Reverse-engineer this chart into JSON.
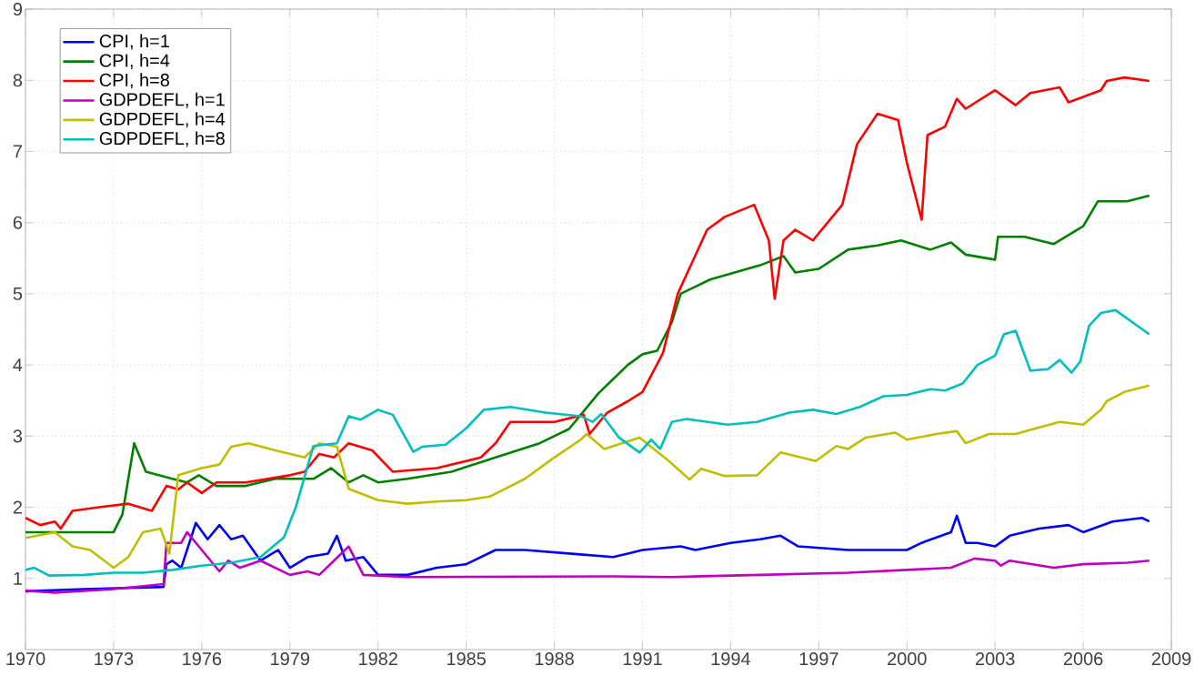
{
  "chart_data": {
    "type": "line",
    "xlim": [
      1970,
      2009
    ],
    "ylim": [
      0,
      9
    ],
    "xticks": [
      1970,
      1973,
      1976,
      1979,
      1982,
      1985,
      1988,
      1991,
      1994,
      1997,
      2000,
      2003,
      2006,
      2009
    ],
    "yticks": [
      1,
      2,
      3,
      4,
      5,
      6,
      7,
      8,
      9
    ],
    "grid": true,
    "legend": "top left",
    "line_style": "solid",
    "marker": "none",
    "series": [
      {
        "name": "CPI, h=1",
        "color": "#0000ff",
        "x": [
          1970,
          1972,
          1974.7,
          1974.8,
          1975,
          1975.3,
          1975.8,
          1976.2,
          1976.6,
          1977,
          1977.4,
          1978,
          1978.6,
          1979,
          1979.6,
          1980.3,
          1980.6,
          1980.9,
          1981.5,
          1982,
          1983,
          1984,
          1985,
          1986,
          1987,
          1988.5,
          1990,
          1990.5,
          1991,
          1992.3,
          1992.8,
          1994,
          1995,
          1995.7,
          1996.3,
          1998,
          2000,
          2000.5,
          2001.5,
          2001.7,
          2002,
          2002.4,
          2003,
          2003.5,
          2004.5,
          2005.5,
          2006,
          2007,
          2008,
          2008.25
        ],
        "values": [
          0.82,
          0.85,
          0.88,
          1.2,
          1.25,
          1.15,
          1.78,
          1.55,
          1.75,
          1.55,
          1.6,
          1.25,
          1.4,
          1.15,
          1.3,
          1.35,
          1.6,
          1.25,
          1.3,
          1.05,
          1.05,
          1.15,
          1.2,
          1.4,
          1.4,
          1.35,
          1.3,
          1.35,
          1.4,
          1.45,
          1.4,
          1.5,
          1.55,
          1.6,
          1.45,
          1.4,
          1.4,
          1.5,
          1.65,
          1.88,
          1.5,
          1.5,
          1.45,
          1.6,
          1.7,
          1.75,
          1.65,
          1.8,
          1.85,
          1.8
        ]
      },
      {
        "name": "CPI, h=4",
        "color": "#008000",
        "x": [
          1970,
          1973,
          1973.3,
          1973.7,
          1974.1,
          1975,
          1975.5,
          1975.9,
          1976.5,
          1977.5,
          1978.5,
          1979.8,
          1980.4,
          1981,
          1981.5,
          1982,
          1983,
          1984.5,
          1986,
          1987.5,
          1988.5,
          1989.5,
          1990,
          1990.5,
          1991,
          1991.5,
          1992,
          1992.3,
          1993.3,
          1995,
          1995.8,
          1996.2,
          1997,
          1998,
          1999,
          1999.8,
          2000.8,
          2001.5,
          2002,
          2003,
          2003.1,
          2004,
          2005,
          2006,
          2006.5,
          2007.5,
          2008.25
        ],
        "values": [
          1.65,
          1.65,
          1.9,
          2.9,
          2.5,
          2.4,
          2.35,
          2.45,
          2.3,
          2.3,
          2.4,
          2.4,
          2.55,
          2.35,
          2.45,
          2.35,
          2.4,
          2.5,
          2.7,
          2.9,
          3.1,
          3.6,
          3.8,
          4.0,
          4.15,
          4.2,
          4.6,
          5.0,
          5.2,
          5.4,
          5.53,
          5.3,
          5.35,
          5.62,
          5.68,
          5.75,
          5.62,
          5.72,
          5.55,
          5.48,
          5.8,
          5.8,
          5.7,
          5.95,
          6.3,
          6.3,
          6.38
        ]
      },
      {
        "name": "CPI, h=8",
        "color": "#ff0000",
        "x": [
          1970,
          1970.5,
          1971,
          1971.2,
          1971.6,
          1972.5,
          1973.5,
          1974.3,
          1974.8,
          1975.2,
          1975.5,
          1976,
          1976.5,
          1977.5,
          1979,
          1979.5,
          1980,
          1980.5,
          1981,
          1981.8,
          1982.5,
          1984,
          1985.5,
          1986,
          1986.5,
          1988,
          1989,
          1989.2,
          1989.8,
          1990.5,
          1991,
          1991.7,
          1992.2,
          1993.2,
          1993.8,
          1994.8,
          1995.3,
          1995.5,
          1995.8,
          1996.2,
          1996.8,
          1997.8,
          1998.3,
          1999,
          1999.7,
          2000,
          2000.5,
          2000.7,
          2001.3,
          2001.7,
          2002,
          2003,
          2003.7,
          2004.2,
          2005.2,
          2005.5,
          2006.6,
          2006.8,
          2007.4,
          2008.25
        ],
        "values": [
          1.85,
          1.75,
          1.8,
          1.7,
          1.95,
          2.0,
          2.05,
          1.95,
          2.3,
          2.25,
          2.35,
          2.2,
          2.35,
          2.35,
          2.45,
          2.5,
          2.75,
          2.7,
          2.9,
          2.8,
          2.5,
          2.55,
          2.7,
          2.9,
          3.2,
          3.2,
          3.3,
          3.03,
          3.33,
          3.49,
          3.62,
          4.17,
          5.0,
          5.9,
          6.08,
          6.25,
          5.75,
          4.93,
          5.75,
          5.9,
          5.75,
          6.25,
          7.1,
          7.53,
          7.44,
          6.84,
          6.04,
          7.23,
          7.35,
          7.74,
          7.6,
          7.86,
          7.65,
          7.82,
          7.9,
          7.69,
          7.86,
          7.99,
          8.04,
          7.99
        ]
      },
      {
        "name": "GDPDEFL, h=1",
        "color": "#bf00bf",
        "x": [
          1970,
          1971,
          1973,
          1974.7,
          1974.8,
          1975.3,
          1975.5,
          1976,
          1976.6,
          1976.9,
          1977.3,
          1978,
          1978.5,
          1979,
          1979.6,
          1980,
          1980.5,
          1981,
          1981.5,
          1983,
          1990,
          1992,
          1995,
          1998,
          2000,
          2001.5,
          2002.3,
          2003,
          2003.2,
          2003.5,
          2005,
          2006,
          2007.5,
          2008.25
        ],
        "values": [
          0.83,
          0.8,
          0.85,
          0.92,
          1.5,
          1.5,
          1.65,
          1.4,
          1.1,
          1.25,
          1.15,
          1.25,
          1.15,
          1.05,
          1.1,
          1.05,
          1.25,
          1.45,
          1.05,
          1.02,
          1.03,
          1.02,
          1.05,
          1.08,
          1.12,
          1.15,
          1.28,
          1.25,
          1.18,
          1.25,
          1.15,
          1.2,
          1.22,
          1.25
        ]
      },
      {
        "name": "GDPDEFL, h=4",
        "color": "#bfbf00",
        "x": [
          1970,
          1971,
          1971.6,
          1972.2,
          1973,
          1973.5,
          1974,
          1974.6,
          1974.9,
          1975.2,
          1976,
          1976.6,
          1977,
          1977.6,
          1978.5,
          1979.5,
          1980,
          1980.6,
          1981,
          1982,
          1983,
          1984,
          1985,
          1985.8,
          1987,
          1988,
          1988.9,
          1989.1,
          1989.7,
          1990.9,
          1991.9,
          1992.6,
          1993,
          1993.8,
          1994.9,
          1995.7,
          1996.9,
          1997.6,
          1998,
          1998.6,
          1999.6,
          2000,
          2001,
          2001.7,
          2002,
          2002.8,
          2003.7,
          2004.4,
          2005.2,
          2006,
          2006.6,
          2006.8,
          2007.4,
          2008.25
        ],
        "values": [
          1.57,
          1.65,
          1.45,
          1.4,
          1.15,
          1.3,
          1.65,
          1.7,
          1.35,
          2.45,
          2.55,
          2.6,
          2.85,
          2.9,
          2.8,
          2.7,
          2.9,
          2.85,
          2.26,
          2.1,
          2.05,
          2.08,
          2.1,
          2.15,
          2.4,
          2.7,
          2.95,
          3.03,
          2.82,
          2.98,
          2.65,
          2.39,
          2.54,
          2.44,
          2.45,
          2.77,
          2.65,
          2.86,
          2.82,
          2.98,
          3.05,
          2.95,
          3.03,
          3.07,
          2.9,
          3.03,
          3.03,
          3.11,
          3.2,
          3.16,
          3.37,
          3.49,
          3.62,
          3.71
        ]
      },
      {
        "name": "GDPDEFL, h=8",
        "color": "#00bfbf",
        "x": [
          1970,
          1970.3,
          1970.8,
          1972,
          1973,
          1974,
          1975,
          1976,
          1977,
          1978,
          1978.8,
          1979.2,
          1979.8,
          1980.6,
          1981,
          1981.4,
          1982,
          1982.5,
          1983.2,
          1983.5,
          1984.3,
          1985,
          1985.6,
          1986.5,
          1987.7,
          1988.9,
          1989.3,
          1989.6,
          1990.2,
          1990.9,
          1991.3,
          1991.6,
          1992,
          1992.5,
          1993.9,
          1994.9,
          1996,
          1996.8,
          1997.6,
          1998.4,
          1999.2,
          2000,
          2000.8,
          2001.3,
          2001.9,
          2002.4,
          2003,
          2003.3,
          2003.7,
          2004.2,
          2004.8,
          2005.2,
          2005.6,
          2005.9,
          2006.2,
          2006.6,
          2007.1,
          2008.25
        ],
        "values": [
          1.12,
          1.15,
          1.04,
          1.05,
          1.08,
          1.08,
          1.12,
          1.18,
          1.22,
          1.3,
          1.58,
          2.0,
          2.86,
          2.9,
          3.28,
          3.23,
          3.37,
          3.3,
          2.78,
          2.85,
          2.88,
          3.11,
          3.37,
          3.41,
          3.33,
          3.28,
          3.2,
          3.31,
          2.98,
          2.77,
          2.95,
          2.82,
          3.2,
          3.24,
          3.16,
          3.2,
          3.33,
          3.37,
          3.31,
          3.41,
          3.56,
          3.58,
          3.66,
          3.64,
          3.74,
          4.0,
          4.13,
          4.43,
          4.48,
          3.92,
          3.94,
          4.07,
          3.89,
          4.05,
          4.55,
          4.73,
          4.77,
          4.43
        ]
      }
    ]
  }
}
